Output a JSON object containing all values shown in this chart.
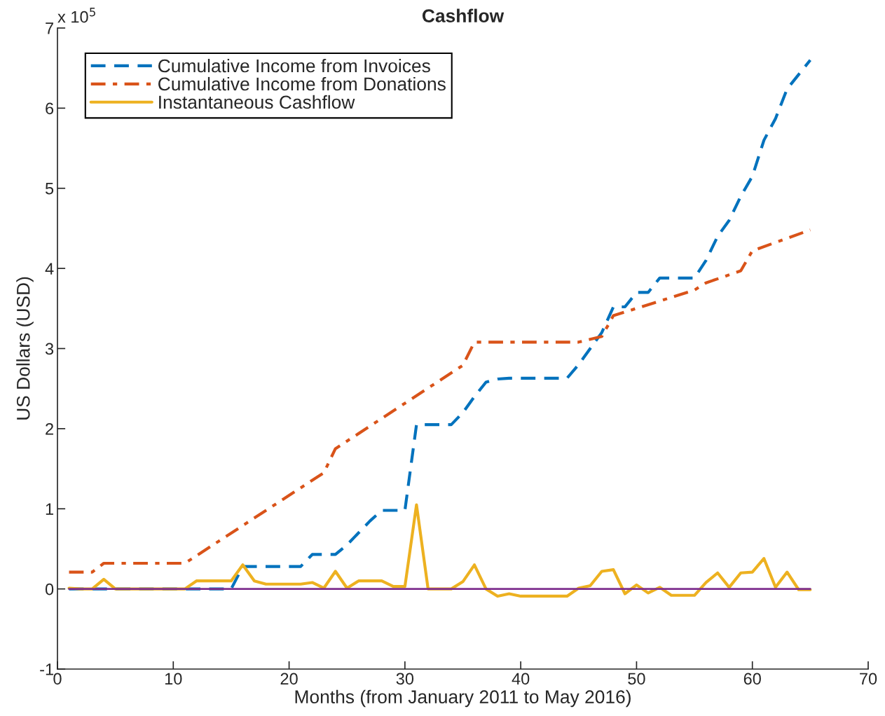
{
  "chart_data": {
    "type": "line",
    "title": "Cashflow",
    "xlabel": "Months (from January 2011 to May 2016)",
    "ylabel": "US Dollars (USD)",
    "annotations": [
      "x 10$^{5}$"
    ],
    "xlim": [
      0,
      70
    ],
    "xticks": [
      0,
      10,
      20,
      30,
      40,
      50,
      60,
      70
    ],
    "ylim": [
      -1,
      7
    ],
    "yticks": [
      -1,
      0,
      1,
      2,
      3,
      4,
      5,
      6,
      7
    ],
    "grid": false,
    "legend": "top left",
    "marker": "none",
    "series": [
      {
        "name": "Cumulative Income from Invoices",
        "color": "#0072bd",
        "line_style": "dashed",
        "x": [
          1,
          15,
          16,
          21,
          22,
          24,
          25,
          26,
          27,
          28,
          30,
          31,
          34,
          35,
          36,
          37,
          38,
          39,
          44,
          45,
          46,
          47,
          48,
          49,
          50,
          51,
          52,
          55,
          56,
          57,
          58,
          59,
          60,
          61,
          62,
          63,
          65
        ],
        "values": [
          0,
          0,
          0.28,
          0.28,
          0.43,
          0.43,
          0.55,
          0.7,
          0.85,
          0.98,
          0.98,
          2.05,
          2.05,
          2.2,
          2.4,
          2.58,
          2.62,
          2.63,
          2.63,
          2.8,
          3.0,
          3.2,
          3.52,
          3.52,
          3.7,
          3.7,
          3.88,
          3.88,
          4.1,
          4.4,
          4.6,
          4.9,
          5.15,
          5.6,
          5.87,
          6.24,
          6.6
        ]
      },
      {
        "name": "Cumulative Income from Donations",
        "color": "#d95319",
        "line_style": "dashdot",
        "x": [
          1,
          3,
          4,
          11,
          23,
          24,
          35,
          36,
          45,
          47,
          48,
          55,
          56,
          59,
          60,
          65
        ],
        "values": [
          0.21,
          0.21,
          0.32,
          0.32,
          1.45,
          1.75,
          2.79,
          3.08,
          3.08,
          3.15,
          3.41,
          3.73,
          3.82,
          3.97,
          4.22,
          4.48
        ]
      },
      {
        "name": "Instantaneous Cashflow",
        "color": "#edb120",
        "line_style": "solid",
        "x": [
          1,
          2,
          3,
          4,
          5,
          6,
          7,
          8,
          9,
          10,
          11,
          12,
          13,
          14,
          15,
          16,
          17,
          18,
          19,
          20,
          21,
          22,
          23,
          24,
          25,
          26,
          27,
          28,
          29,
          30,
          31,
          32,
          33,
          34,
          35,
          36,
          37,
          38,
          39,
          40,
          41,
          42,
          43,
          44,
          45,
          46,
          47,
          48,
          49,
          50,
          51,
          52,
          53,
          54,
          55,
          56,
          57,
          58,
          59,
          60,
          61,
          62,
          63,
          64,
          65
        ],
        "values": [
          0.01,
          0,
          0,
          0.12,
          0,
          0,
          0,
          0,
          0,
          0,
          0,
          0.1,
          0.1,
          0.1,
          0.1,
          0.3,
          0.1,
          0.06,
          0.06,
          0.06,
          0.06,
          0.08,
          0.01,
          0.22,
          0.01,
          0.1,
          0.1,
          0.1,
          0.03,
          0.03,
          1.05,
          0,
          0,
          0,
          0.09,
          0.3,
          0,
          -0.09,
          -0.06,
          -0.09,
          -0.09,
          -0.09,
          -0.09,
          -0.09,
          0.01,
          0.04,
          0.22,
          0.24,
          -0.06,
          0.05,
          -0.05,
          0.02,
          -0.08,
          -0.08,
          -0.08,
          0.08,
          0.2,
          0.02,
          0.2,
          0.21,
          0.38,
          0.02,
          0.21,
          -0.01,
          -0.01
        ]
      },
      {
        "color": "#7e2f8e",
        "line_style": "solid",
        "x": [
          1,
          65
        ],
        "values": [
          0,
          0
        ]
      }
    ]
  }
}
